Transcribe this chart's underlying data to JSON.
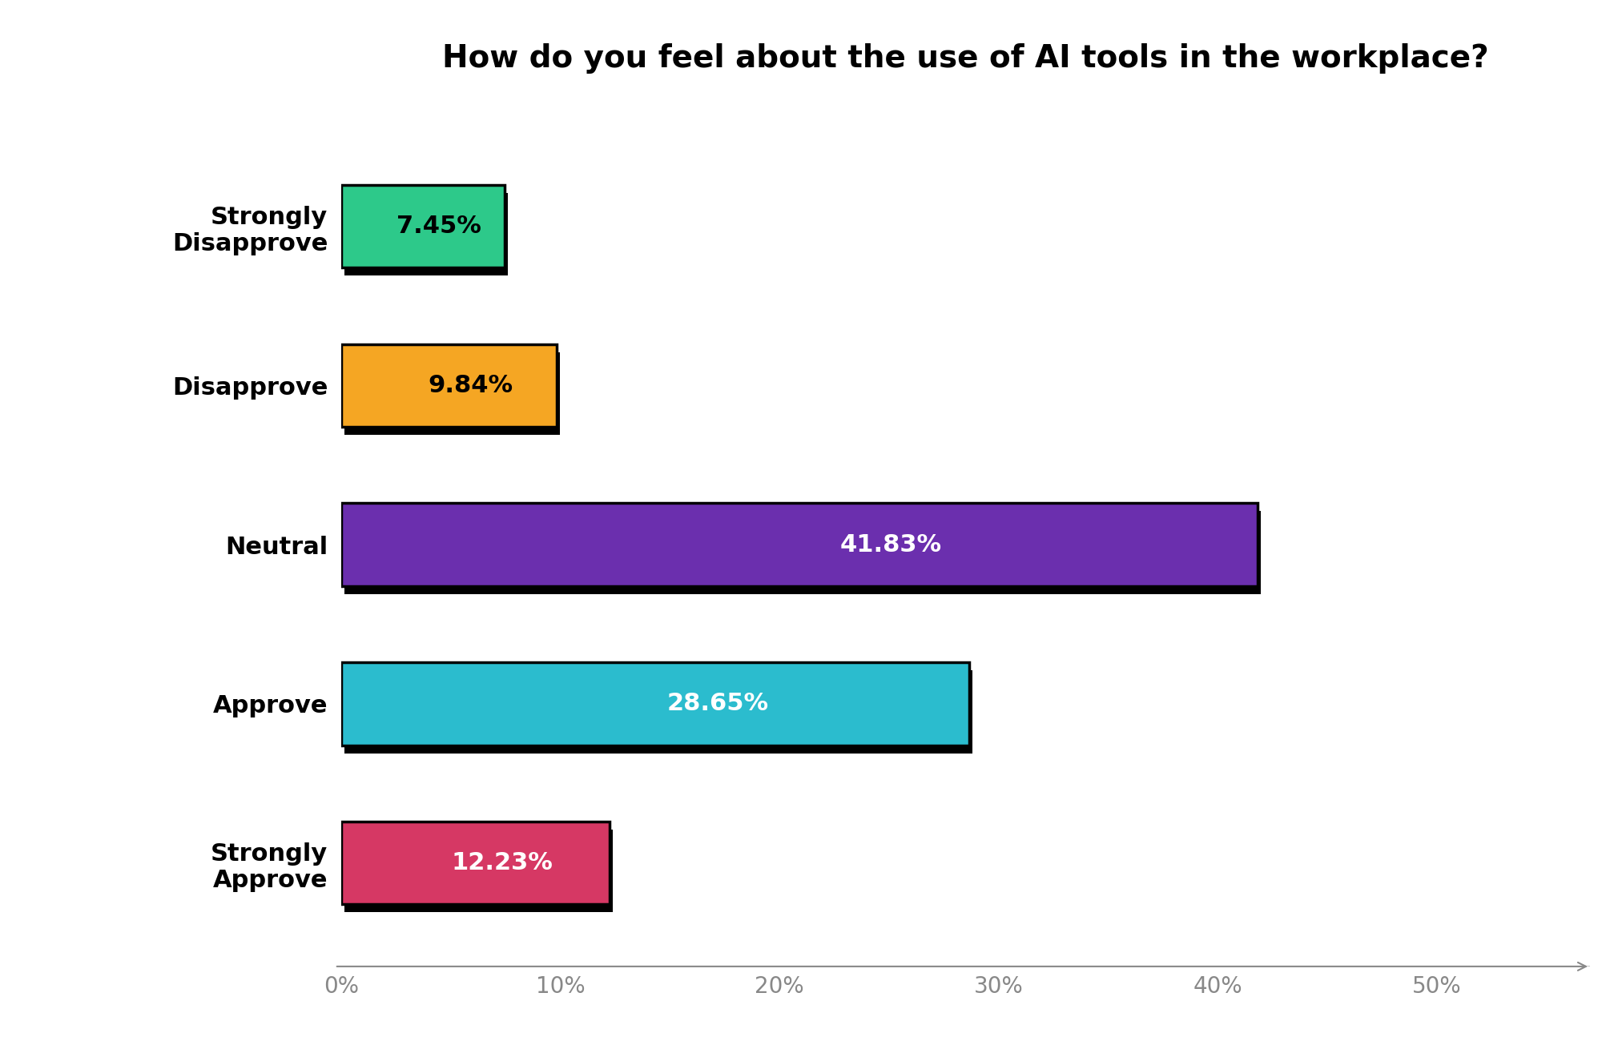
{
  "title": "How do you feel about the use of AI tools in the workplace?",
  "categories": [
    "Strongly\nDisapprove",
    "Disapprove",
    "Neutral",
    "Approve",
    "Strongly\nApprove"
  ],
  "values": [
    7.45,
    9.84,
    41.83,
    28.65,
    12.23
  ],
  "labels": [
    "7.45%",
    "9.84%",
    "41.83%",
    "28.65%",
    "12.23%"
  ],
  "bar_colors": [
    "#2DC98A",
    "#F5A623",
    "#6B2FAE",
    "#2BBCCE",
    "#D63864"
  ],
  "bar_edge_color": "#000000",
  "bar_edge_width": 2.5,
  "label_colors": [
    "#000000",
    "#000000",
    "#ffffff",
    "#ffffff",
    "#ffffff"
  ],
  "xlim": [
    0,
    57
  ],
  "xticks": [
    0,
    10,
    20,
    30,
    40,
    50
  ],
  "xticklabels": [
    "0%",
    "10%",
    "20%",
    "30%",
    "40%",
    "50%"
  ],
  "title_fontsize": 28,
  "title_fontweight": "bold",
  "label_fontsize": 22,
  "tick_fontsize": 20,
  "ytick_fontsize": 22,
  "bar_height": 0.52,
  "shadow_thickness": 0.045,
  "shadow_color": "#000000",
  "background_color": "#ffffff",
  "axis_color": "#cccccc"
}
